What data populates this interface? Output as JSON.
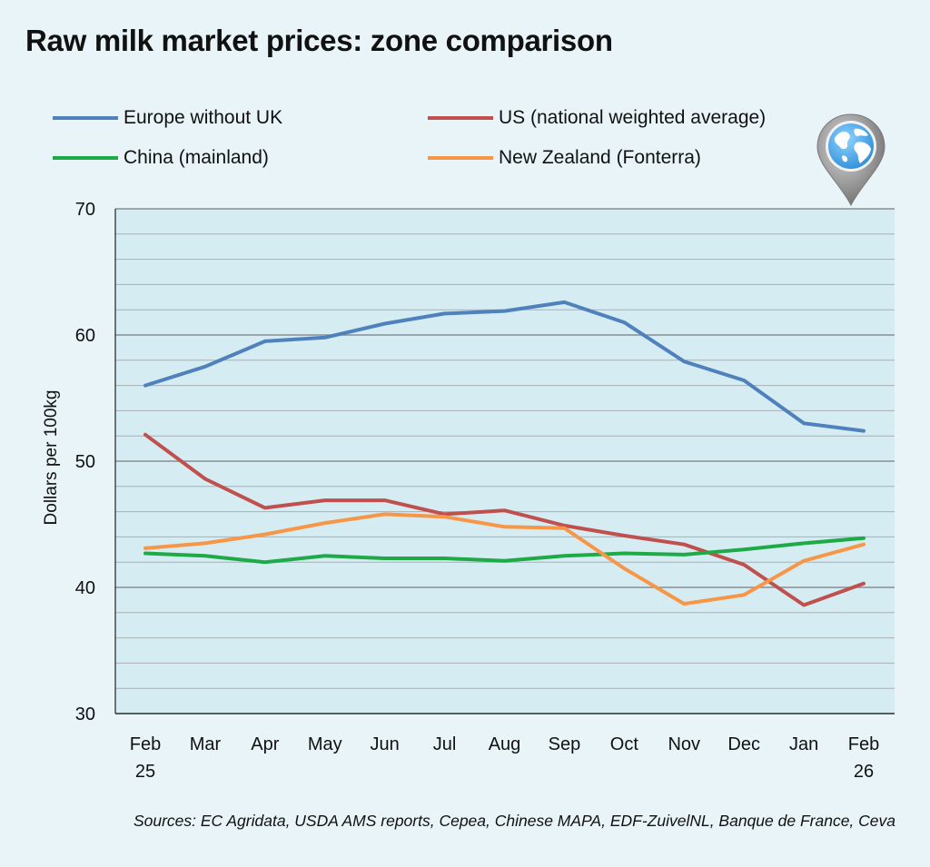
{
  "title": "Raw milk market prices: zone comparison",
  "source": "Sources: EC Agridata, USDA AMS reports, Cepea, Chinese MAPA, EDF-ZuivelNL, Banque de France, Ceva",
  "icon": "globe-pin-icon",
  "colors": {
    "plot_background": "#d6ecf3",
    "gridline": "#a9b0b3",
    "axis": "#222222"
  },
  "chart_data": {
    "type": "line",
    "ylabel": "Dollars per 100kg",
    "xlabel": "",
    "ylim": [
      30,
      70
    ],
    "yticks": [
      30,
      40,
      50,
      60,
      70
    ],
    "grid": true,
    "legend_position": "top",
    "categories": [
      [
        "Feb",
        "25"
      ],
      [
        "Mar"
      ],
      [
        "Apr"
      ],
      [
        "May"
      ],
      [
        "Jun"
      ],
      [
        "Jul"
      ],
      [
        "Aug"
      ],
      [
        "Sep"
      ],
      [
        "Oct"
      ],
      [
        "Nov"
      ],
      [
        "Dec"
      ],
      [
        "Jan"
      ],
      [
        "Feb",
        "26"
      ]
    ],
    "series": [
      {
        "name": "Europe without UK",
        "color": "#4f81bd",
        "values": [
          56.0,
          57.5,
          59.5,
          59.8,
          60.9,
          61.7,
          61.9,
          62.6,
          61.0,
          57.9,
          56.4,
          53.0,
          52.4
        ]
      },
      {
        "name": "US (national weighted average)",
        "color": "#c0504d",
        "values": [
          52.1,
          48.6,
          46.3,
          46.9,
          46.9,
          45.8,
          46.1,
          44.9,
          44.1,
          43.4,
          41.8,
          38.6,
          40.3
        ]
      },
      {
        "name": "China (mainland)",
        "color": "#1daa47",
        "values": [
          42.7,
          42.5,
          42.0,
          42.5,
          42.3,
          42.3,
          42.1,
          42.5,
          42.7,
          42.6,
          43.0,
          43.5,
          43.9
        ]
      },
      {
        "name": "New Zealand (Fonterra)",
        "color": "#f79646",
        "values": [
          43.1,
          43.5,
          44.2,
          45.1,
          45.8,
          45.6,
          44.8,
          44.7,
          41.5,
          38.7,
          39.4,
          42.1,
          43.4
        ]
      }
    ]
  }
}
